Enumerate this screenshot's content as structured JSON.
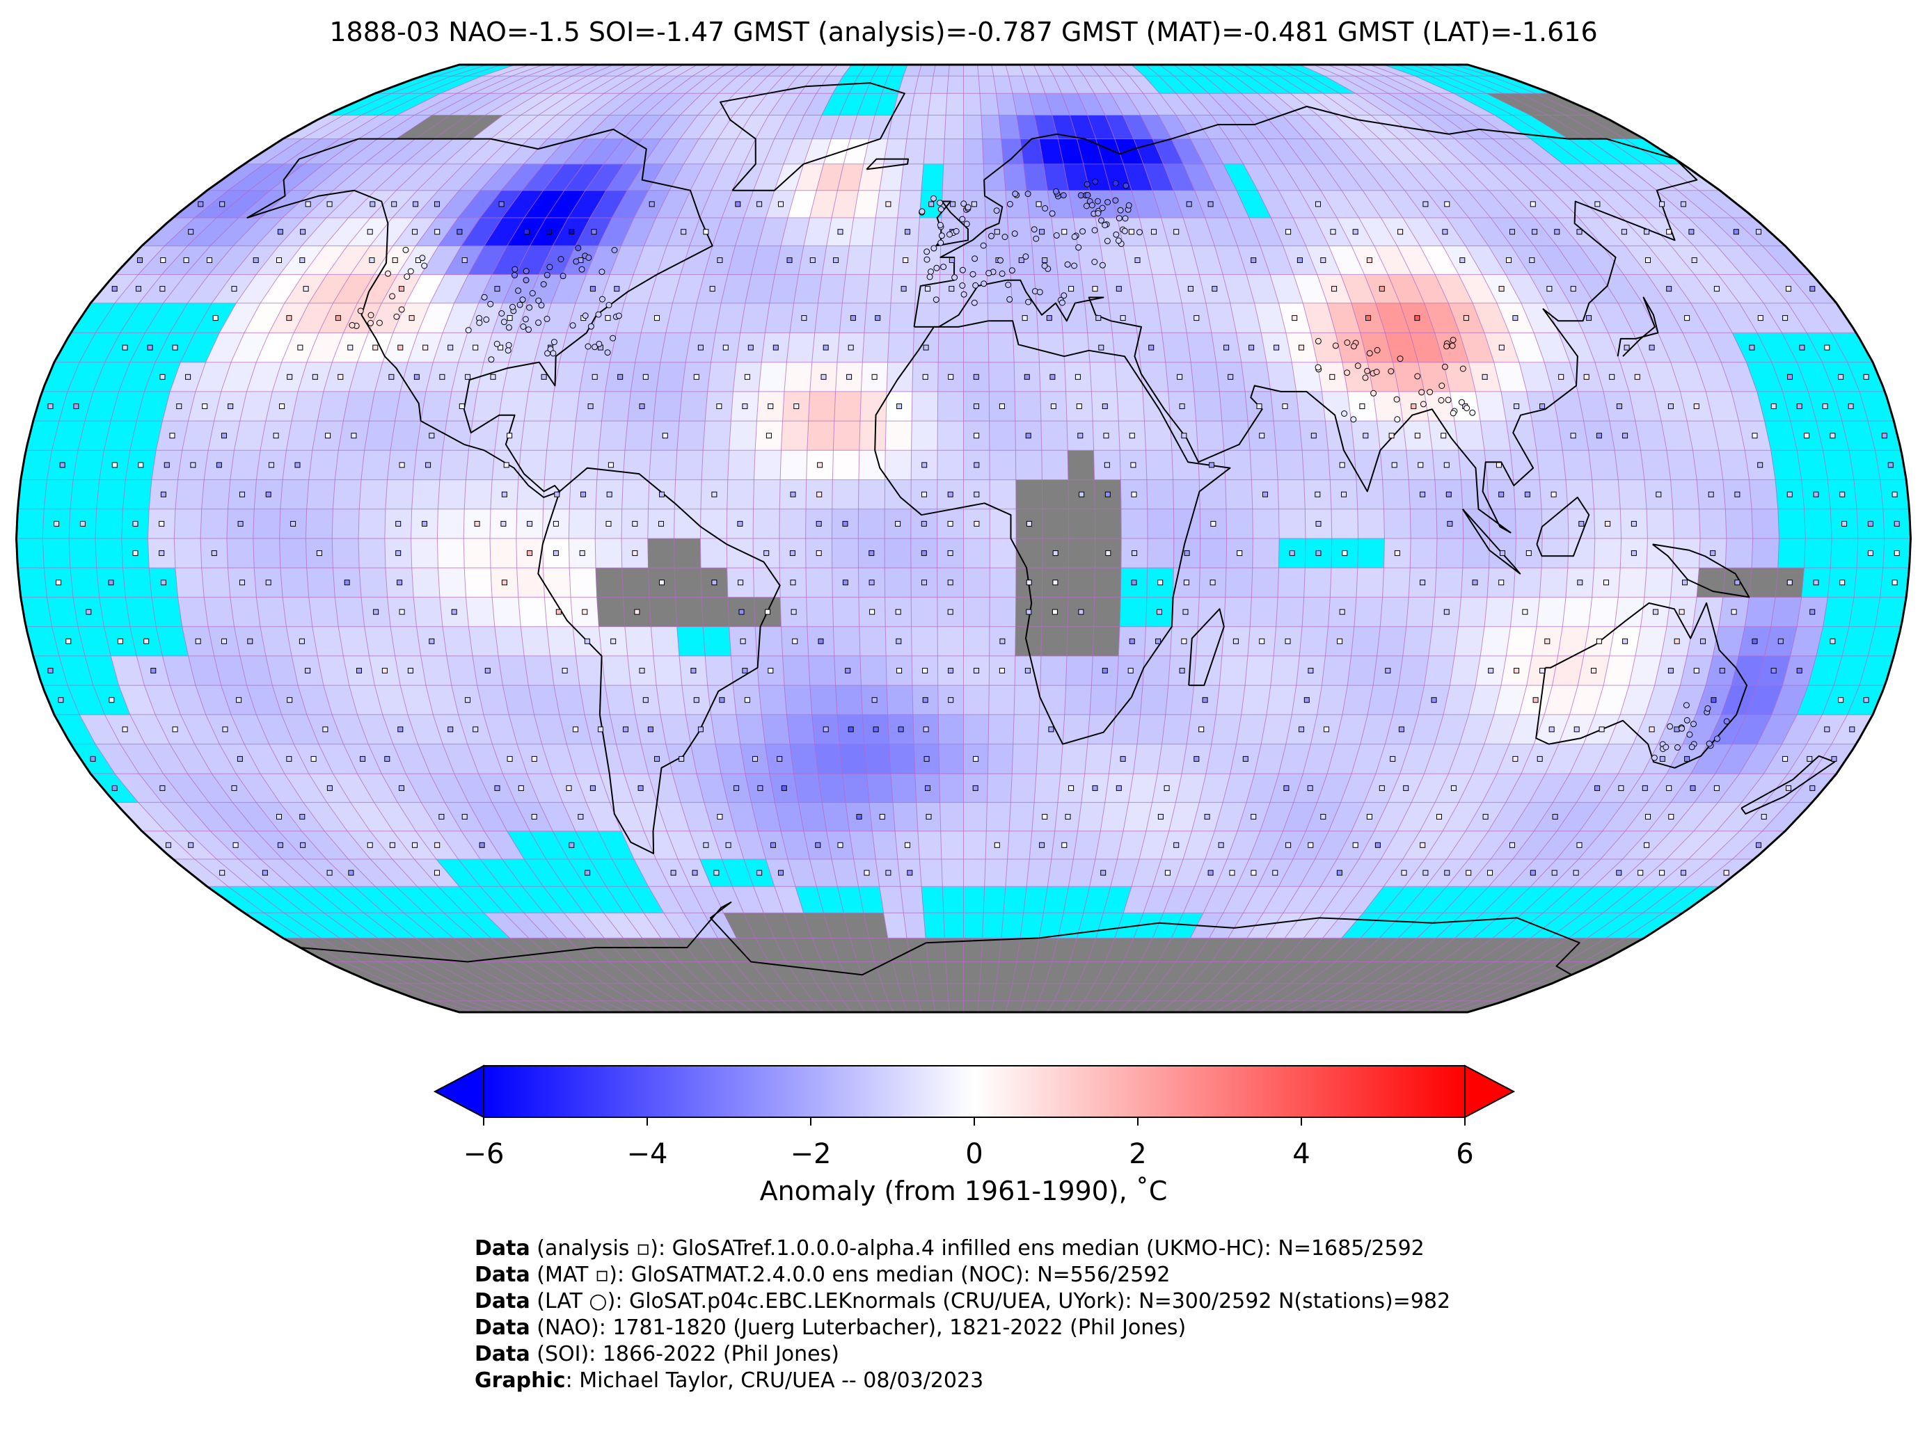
{
  "title": "1888-03 NAO=-1.5 SOI=-1.47 GMST (analysis)=-0.787 GMST (MAT)=-0.481 GMST (LAT)=-1.616",
  "map": {
    "projection": "Robinson",
    "grid": "5x5 degree",
    "colors": {
      "no_data_ocean": "#00f5ff",
      "no_data_land": "#808080",
      "grid_lines": "#b36bc4",
      "coastline": "#000000"
    }
  },
  "colorbar": {
    "cmap": "bwr",
    "range": [
      -6,
      6
    ],
    "extend": "both",
    "ticks": [
      {
        "value": -6,
        "label": "−6"
      },
      {
        "value": -4,
        "label": "−4"
      },
      {
        "value": -2,
        "label": "−2"
      },
      {
        "value": 0,
        "label": "0"
      },
      {
        "value": 2,
        "label": "2"
      },
      {
        "value": 4,
        "label": "4"
      },
      {
        "value": 6,
        "label": "6"
      }
    ],
    "label": "Anomaly (from 1961-1990), ˚C"
  },
  "credits": [
    {
      "key": "Data",
      "text": " (analysis ▫): GloSATref.1.0.0.0-alpha.4 infilled ens median (UKMO-HC): N=1685/2592"
    },
    {
      "key": "Data",
      "text": " (MAT ▫): GloSATMAT.2.4.0.0 ens median (NOC): N=556/2592"
    },
    {
      "key": "Data",
      "text": " (LAT ○): GloSAT.p04c.EBC.LEKnormals (CRU/UEA, UYork): N=300/2592 N(stations)=982"
    },
    {
      "key": "Data",
      "text": " (NAO): 1781-1820 (Juerg Luterbacher), 1821-2022 (Phil Jones)"
    },
    {
      "key": "Data",
      "text": " (SOI): 1866-2022 (Phil Jones)"
    },
    {
      "key": "Graphic",
      "text": ": Michael Taylor, CRU/UEA -- 08/03/2023"
    }
  ]
}
